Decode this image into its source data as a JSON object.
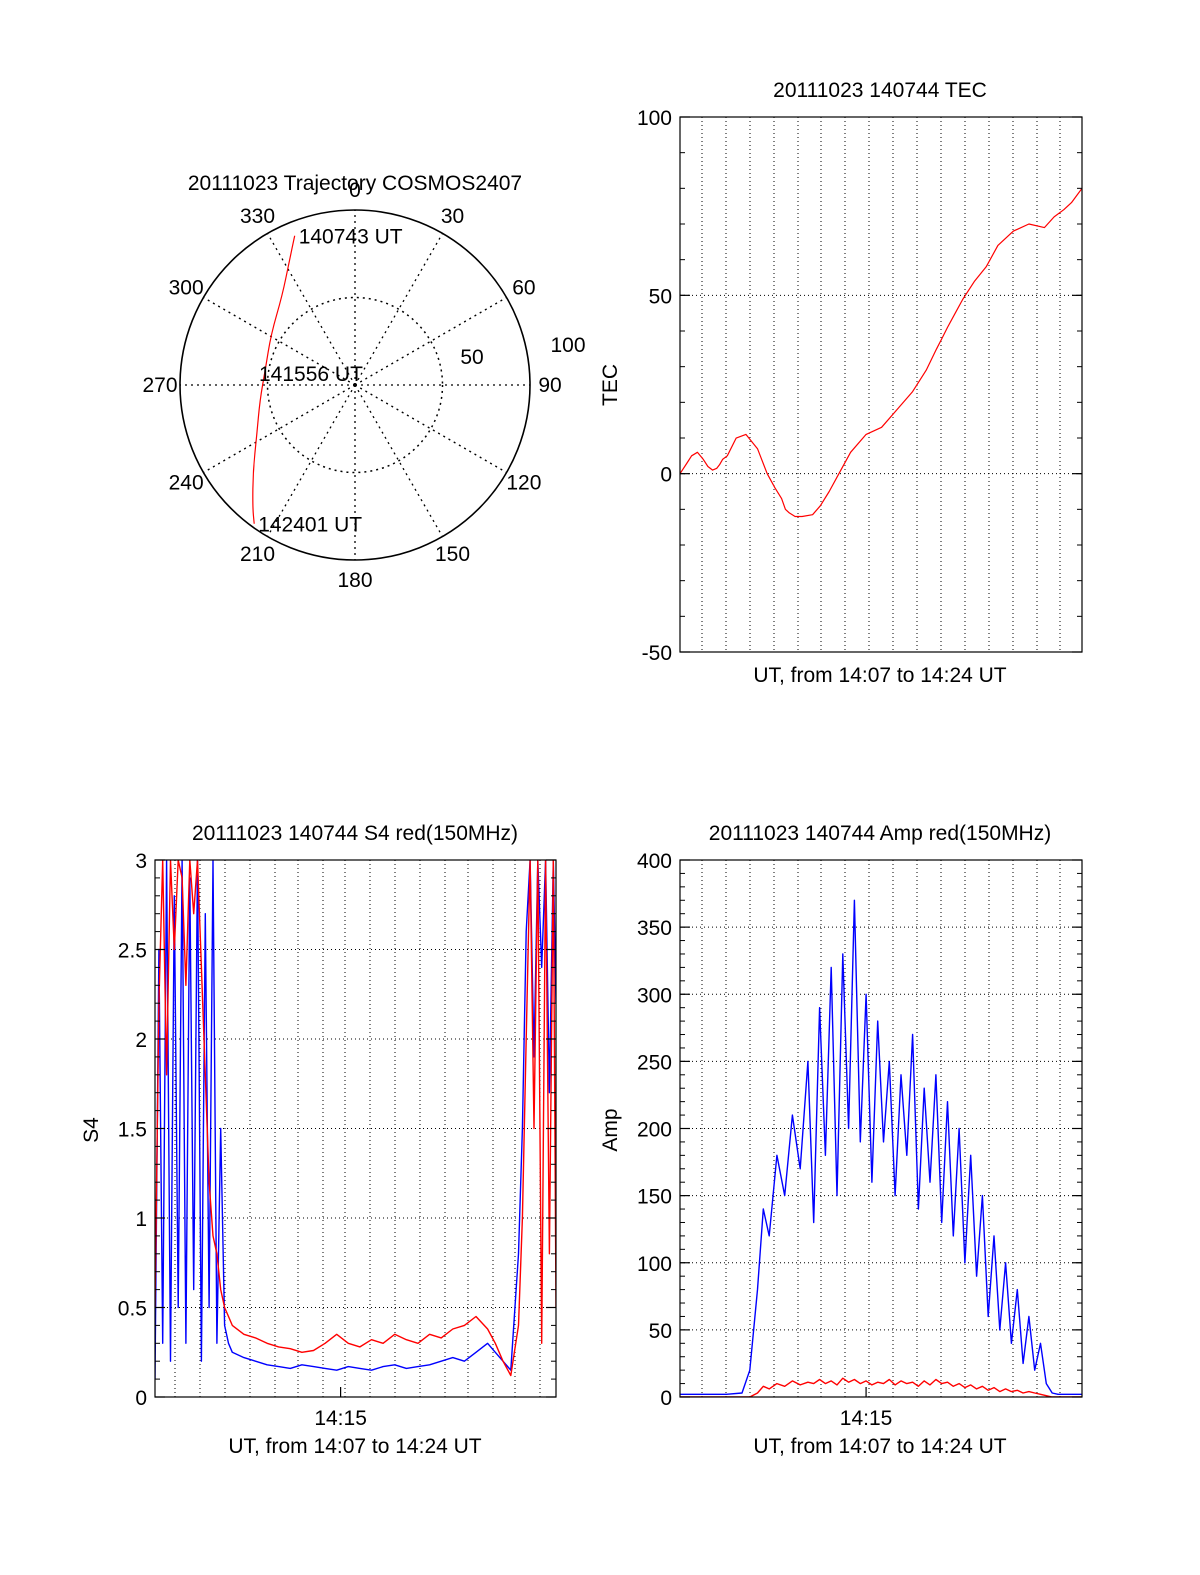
{
  "chart_data": [
    {
      "type": "polar",
      "title": "20111023 Trajectory COSMOS2407",
      "azimuth_labels": [
        "0",
        "30",
        "60",
        "90",
        "120",
        "150",
        "180",
        "210",
        "240",
        "270",
        "300",
        "330"
      ],
      "ring_labels": [
        "50",
        "100"
      ],
      "rings": [
        50,
        100
      ],
      "series": [
        {
          "color": "#ff0000",
          "points": [
            {
              "az": 338,
              "r": 92
            },
            {
              "az": 332,
              "r": 80
            },
            {
              "az": 321,
              "r": 66
            },
            {
              "az": 301,
              "r": 56
            },
            {
              "az": 280,
              "r": 52
            },
            {
              "az": 261,
              "r": 55
            },
            {
              "az": 243,
              "r": 63
            },
            {
              "az": 230,
              "r": 76
            },
            {
              "az": 220,
              "r": 91
            },
            {
              "az": 216,
              "r": 98
            }
          ]
        }
      ],
      "annotations": [
        {
          "text": "140743 UT",
          "az": 338,
          "r": 92
        },
        {
          "text": "141556 UT",
          "az": 0,
          "r": 0
        },
        {
          "text": "142401 UT",
          "az": 216,
          "r": 98
        }
      ]
    },
    {
      "type": "line",
      "title": "20111023 140744 TEC",
      "xlabel": "UT, from 14:07 to 14:24 UT",
      "ylabel": "TEC",
      "xlim": [
        0,
        1037
      ],
      "ylim": [
        -50,
        100
      ],
      "yticks": [
        "-50",
        "0",
        "50",
        "100"
      ],
      "grid": true,
      "series": [
        {
          "color": "#ff0000",
          "x": [
            0,
            18,
            30,
            45,
            60,
            72,
            84,
            95,
            102,
            110,
            122,
            145,
            170,
            200,
            225,
            245,
            262,
            272,
            282,
            297,
            315,
            342,
            362,
            385,
            410,
            440,
            480,
            520,
            560,
            600,
            635,
            662,
            676,
            690,
            710,
            730,
            760,
            790,
            820,
            860,
            900,
            940,
            965,
            990,
            1010,
            1037
          ],
          "y": [
            0,
            3,
            5,
            6,
            4,
            2,
            1,
            1.5,
            2.5,
            4,
            5,
            10,
            11,
            7,
            0,
            -4,
            -7,
            -10,
            -11,
            -12,
            -12,
            -11.5,
            -9,
            -5,
            0,
            6,
            11,
            13,
            18,
            23,
            29,
            35,
            38,
            41,
            45,
            49,
            54,
            58,
            64,
            68,
            70,
            69,
            72,
            74,
            76,
            80
          ]
        }
      ]
    },
    {
      "type": "line",
      "title": "20111023 140744 S4 red(150MHz)",
      "xlabel": "UT, from 14:07 to 14:24 UT",
      "ylabel": "S4",
      "xlim": [
        0,
        1037
      ],
      "ylim": [
        0,
        3
      ],
      "xticks": [
        {
          "x": 480,
          "label": "14:15"
        }
      ],
      "yticks": [
        "0",
        "0.5",
        "1",
        "1.5",
        "2",
        "2.5",
        "3"
      ],
      "grid": true,
      "series": [
        {
          "color": "#0000ff",
          "x": [
            0,
            10,
            20,
            30,
            40,
            50,
            60,
            70,
            80,
            90,
            100,
            110,
            120,
            130,
            140,
            150,
            160,
            170,
            180,
            190,
            200,
            230,
            260,
            290,
            320,
            350,
            380,
            410,
            440,
            470,
            500,
            530,
            560,
            590,
            620,
            650,
            680,
            710,
            740,
            770,
            800,
            830,
            860,
            880,
            900,
            920,
            940,
            950,
            960,
            970,
            980,
            990,
            1000,
            1010,
            1020,
            1030,
            1037
          ],
          "y": [
            0.1,
            2.5,
            0.3,
            3,
            0.2,
            2.8,
            0.5,
            3,
            0.3,
            2.9,
            0.6,
            3,
            0.2,
            2.7,
            0.5,
            3,
            0.3,
            1.5,
            0.4,
            0.3,
            0.25,
            0.22,
            0.2,
            0.18,
            0.17,
            0.16,
            0.18,
            0.17,
            0.16,
            0.15,
            0.17,
            0.16,
            0.15,
            0.17,
            0.18,
            0.16,
            0.17,
            0.18,
            0.2,
            0.22,
            0.2,
            0.25,
            0.3,
            0.25,
            0.2,
            0.15,
            0.8,
            1.5,
            2.6,
            3,
            1.9,
            3,
            2.4,
            3,
            1.7,
            3,
            2.2
          ]
        },
        {
          "color": "#ff0000",
          "x": [
            0,
            10,
            20,
            30,
            40,
            50,
            60,
            70,
            80,
            90,
            100,
            110,
            120,
            130,
            140,
            150,
            160,
            170,
            180,
            190,
            200,
            230,
            260,
            290,
            320,
            350,
            380,
            410,
            440,
            470,
            500,
            530,
            560,
            590,
            620,
            650,
            680,
            710,
            740,
            770,
            800,
            830,
            860,
            880,
            900,
            920,
            940,
            950,
            960,
            970,
            980,
            990,
            1000,
            1010,
            1020,
            1030,
            1037
          ],
          "y": [
            0.5,
            2.2,
            3,
            1.8,
            3,
            2.5,
            3,
            2.9,
            2.3,
            3,
            2.7,
            3,
            2.4,
            1.8,
            1.2,
            0.9,
            0.8,
            0.6,
            0.5,
            0.45,
            0.4,
            0.35,
            0.33,
            0.3,
            0.28,
            0.27,
            0.25,
            0.26,
            0.3,
            0.35,
            0.3,
            0.28,
            0.32,
            0.3,
            0.35,
            0.32,
            0.3,
            0.35,
            0.33,
            0.38,
            0.4,
            0.45,
            0.38,
            0.3,
            0.2,
            0.12,
            0.4,
            1,
            2,
            3,
            1.5,
            3,
            0.3,
            3,
            0.8,
            3,
            0.5
          ]
        }
      ]
    },
    {
      "type": "line",
      "title": "20111023 140744 Amp red(150MHz)",
      "xlabel": "UT, from 14:07 to 14:24 UT",
      "ylabel": "Amp",
      "xlim": [
        0,
        1037
      ],
      "ylim": [
        0,
        400
      ],
      "xticks": [
        {
          "x": 480,
          "label": "14:15"
        }
      ],
      "yticks": [
        "0",
        "50",
        "100",
        "150",
        "200",
        "250",
        "300",
        "350",
        "400"
      ],
      "grid": true,
      "series": [
        {
          "color": "#0000ff",
          "x": [
            0,
            40,
            80,
            120,
            160,
            180,
            200,
            215,
            230,
            250,
            270,
            290,
            310,
            330,
            345,
            360,
            375,
            390,
            405,
            420,
            435,
            450,
            465,
            480,
            495,
            510,
            525,
            540,
            555,
            570,
            585,
            600,
            615,
            630,
            645,
            660,
            675,
            690,
            705,
            720,
            735,
            750,
            765,
            780,
            795,
            810,
            825,
            840,
            855,
            870,
            885,
            900,
            915,
            930,
            945,
            960,
            975,
            990,
            1010,
            1037
          ],
          "y": [
            2,
            2,
            2,
            2,
            3,
            20,
            80,
            140,
            120,
            180,
            150,
            210,
            170,
            250,
            130,
            290,
            180,
            320,
            150,
            330,
            200,
            370,
            190,
            300,
            160,
            280,
            190,
            250,
            150,
            240,
            180,
            270,
            140,
            230,
            160,
            240,
            130,
            220,
            120,
            200,
            100,
            180,
            90,
            150,
            60,
            120,
            50,
            100,
            40,
            80,
            25,
            60,
            20,
            40,
            10,
            3,
            2,
            2,
            2,
            2
          ]
        },
        {
          "color": "#ff0000",
          "x": [
            0,
            40,
            80,
            120,
            160,
            180,
            200,
            215,
            230,
            250,
            270,
            290,
            310,
            330,
            345,
            360,
            375,
            390,
            405,
            420,
            435,
            450,
            465,
            480,
            495,
            510,
            525,
            540,
            555,
            570,
            585,
            600,
            615,
            630,
            645,
            660,
            675,
            690,
            705,
            720,
            735,
            750,
            765,
            780,
            795,
            810,
            825,
            840,
            855,
            870,
            885,
            900,
            915,
            930,
            945,
            960,
            975,
            990,
            1010,
            1037
          ],
          "y": [
            0,
            0,
            0,
            0,
            0,
            0,
            3,
            8,
            6,
            10,
            8,
            12,
            9,
            11,
            10,
            13,
            10,
            12,
            9,
            14,
            11,
            13,
            10,
            12,
            9,
            11,
            10,
            13,
            9,
            12,
            10,
            11,
            8,
            12,
            9,
            13,
            10,
            11,
            8,
            10,
            7,
            9,
            6,
            8,
            5,
            7,
            4,
            6,
            4,
            5,
            3,
            4,
            3,
            2,
            1,
            0,
            0,
            0,
            0,
            0
          ]
        }
      ]
    }
  ]
}
